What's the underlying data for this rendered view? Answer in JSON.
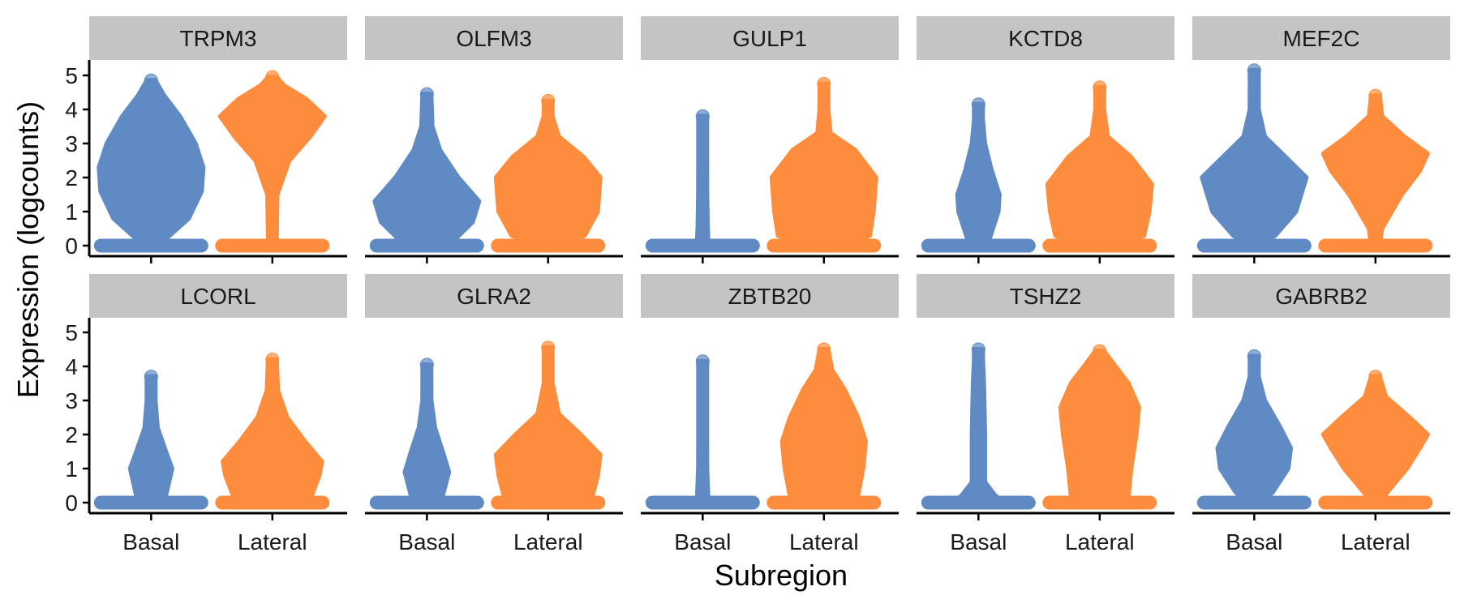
{
  "chart_data": {
    "type": "violin",
    "xlabel": "Subregion",
    "ylabel": "Expression (logcounts)",
    "categories": [
      "Basal",
      "Lateral"
    ],
    "y_ticks": [
      0,
      1,
      2,
      3,
      4,
      5
    ],
    "ylim": [
      -0.25,
      5.3
    ],
    "grid": false,
    "legend": "none",
    "colors": {
      "Basal": "#5f8ac4",
      "Lateral": "#fd8d3c",
      "strip": "#c4c4c4",
      "axis": "#000000"
    },
    "panels": [
      {
        "gene": "TRPM3",
        "Basal": {
          "max": 4.85,
          "zero": true,
          "width": [
            [
              0,
              0.06
            ],
            [
              0.2,
              0.28
            ],
            [
              0.8,
              0.72
            ],
            [
              1.6,
              0.97
            ],
            [
              2.3,
              1.0
            ],
            [
              3.0,
              0.85
            ],
            [
              3.8,
              0.55
            ],
            [
              4.4,
              0.25
            ],
            [
              4.85,
              0.05
            ]
          ]
        },
        "Lateral": {
          "max": 4.95,
          "zero": true,
          "width": [
            [
              0,
              0.05
            ],
            [
              0.3,
              0.06
            ],
            [
              1.5,
              0.09
            ],
            [
              2.5,
              0.32
            ],
            [
              3.2,
              0.72
            ],
            [
              3.8,
              1.0
            ],
            [
              4.3,
              0.65
            ],
            [
              4.7,
              0.22
            ],
            [
              4.95,
              0.05
            ]
          ]
        }
      },
      {
        "gene": "OLFM3",
        "Basal": {
          "max": 4.45,
          "zero": true,
          "width": [
            [
              0,
              0.12
            ],
            [
              0.25,
              0.58
            ],
            [
              0.7,
              0.88
            ],
            [
              1.3,
              1.0
            ],
            [
              2.0,
              0.6
            ],
            [
              2.8,
              0.25
            ],
            [
              3.5,
              0.1
            ],
            [
              4.45,
              0.05
            ]
          ]
        },
        "Lateral": {
          "max": 4.25,
          "zero": true,
          "width": [
            [
              0,
              0.1
            ],
            [
              0.3,
              0.7
            ],
            [
              1.0,
              0.95
            ],
            [
              2.0,
              1.0
            ],
            [
              2.6,
              0.68
            ],
            [
              3.2,
              0.2
            ],
            [
              3.8,
              0.07
            ],
            [
              4.25,
              0.05
            ]
          ]
        }
      },
      {
        "gene": "GULP1",
        "Basal": {
          "max": 3.8,
          "zero": true,
          "width": [
            [
              0,
              0.06
            ],
            [
              0.2,
              0.1
            ],
            [
              0.6,
              0.09
            ],
            [
              1.5,
              0.08
            ],
            [
              2.5,
              0.07
            ],
            [
              3.2,
              0.06
            ],
            [
              3.8,
              0.05
            ]
          ]
        },
        "Lateral": {
          "max": 4.75,
          "zero": true,
          "width": [
            [
              0,
              0.35
            ],
            [
              0.3,
              0.88
            ],
            [
              1.0,
              0.95
            ],
            [
              2.0,
              1.0
            ],
            [
              2.8,
              0.6
            ],
            [
              3.3,
              0.12
            ],
            [
              4.0,
              0.06
            ],
            [
              4.75,
              0.04
            ]
          ]
        }
      },
      {
        "gene": "KCTD8",
        "Basal": {
          "max": 4.15,
          "zero": true,
          "width": [
            [
              0,
              0.12
            ],
            [
              0.25,
              0.22
            ],
            [
              1.0,
              0.38
            ],
            [
              1.5,
              0.4
            ],
            [
              2.2,
              0.25
            ],
            [
              3.0,
              0.12
            ],
            [
              3.7,
              0.06
            ],
            [
              4.15,
              0.05
            ]
          ]
        },
        "Lateral": {
          "max": 4.65,
          "zero": true,
          "width": [
            [
              0,
              0.35
            ],
            [
              0.3,
              0.85
            ],
            [
              1.0,
              0.95
            ],
            [
              1.8,
              1.0
            ],
            [
              2.6,
              0.6
            ],
            [
              3.2,
              0.15
            ],
            [
              4.0,
              0.06
            ],
            [
              4.65,
              0.04
            ]
          ]
        }
      },
      {
        "gene": "MEF2C",
        "Basal": {
          "max": 5.15,
          "zero": true,
          "width": [
            [
              0,
              0.1
            ],
            [
              0.3,
              0.4
            ],
            [
              1.0,
              0.8
            ],
            [
              2.0,
              1.0
            ],
            [
              2.6,
              0.6
            ],
            [
              3.2,
              0.2
            ],
            [
              4.0,
              0.08
            ],
            [
              5.15,
              0.05
            ]
          ]
        },
        "Lateral": {
          "max": 4.4,
          "zero": true,
          "width": [
            [
              0,
              0.05
            ],
            [
              0.5,
              0.12
            ],
            [
              1.5,
              0.5
            ],
            [
              2.2,
              0.85
            ],
            [
              2.7,
              1.0
            ],
            [
              3.2,
              0.55
            ],
            [
              3.8,
              0.12
            ],
            [
              4.4,
              0.05
            ]
          ]
        }
      },
      {
        "gene": "LCORL",
        "Basal": {
          "max": 3.7,
          "zero": true,
          "width": [
            [
              0,
              0.2
            ],
            [
              0.2,
              0.28
            ],
            [
              1.0,
              0.4
            ],
            [
              1.5,
              0.28
            ],
            [
              2.2,
              0.12
            ],
            [
              3.0,
              0.07
            ],
            [
              3.7,
              0.05
            ]
          ]
        },
        "Lateral": {
          "max": 4.2,
          "zero": true,
          "width": [
            [
              0,
              0.3
            ],
            [
              0.2,
              0.75
            ],
            [
              0.8,
              0.9
            ],
            [
              1.2,
              0.95
            ],
            [
              1.8,
              0.62
            ],
            [
              2.5,
              0.28
            ],
            [
              3.3,
              0.1
            ],
            [
              4.2,
              0.05
            ]
          ]
        }
      },
      {
        "gene": "GLRA2",
        "Basal": {
          "max": 4.05,
          "zero": true,
          "width": [
            [
              0,
              0.2
            ],
            [
              0.2,
              0.3
            ],
            [
              0.9,
              0.42
            ],
            [
              1.5,
              0.3
            ],
            [
              2.2,
              0.15
            ],
            [
              3.0,
              0.08
            ],
            [
              4.05,
              0.05
            ]
          ]
        },
        "Lateral": {
          "max": 4.55,
          "zero": true,
          "width": [
            [
              0,
              0.3
            ],
            [
              0.2,
              0.85
            ],
            [
              0.8,
              0.95
            ],
            [
              1.4,
              1.0
            ],
            [
              2.0,
              0.62
            ],
            [
              2.6,
              0.2
            ],
            [
              3.5,
              0.07
            ],
            [
              4.55,
              0.05
            ]
          ]
        }
      },
      {
        "gene": "ZBTB20",
        "Basal": {
          "max": 4.15,
          "zero": true,
          "width": [
            [
              0,
              0.12
            ],
            [
              0.2,
              0.1
            ],
            [
              1.0,
              0.08
            ],
            [
              2.0,
              0.07
            ],
            [
              3.0,
              0.06
            ],
            [
              4.15,
              0.05
            ]
          ]
        },
        "Lateral": {
          "max": 4.5,
          "zero": true,
          "width": [
            [
              0,
              0.4
            ],
            [
              0.2,
              0.65
            ],
            [
              1.0,
              0.75
            ],
            [
              1.8,
              0.8
            ],
            [
              2.5,
              0.65
            ],
            [
              3.3,
              0.4
            ],
            [
              3.9,
              0.15
            ],
            [
              4.5,
              0.05
            ]
          ]
        }
      },
      {
        "gene": "TSHZ2",
        "Basal": {
          "max": 4.5,
          "zero": true,
          "width": [
            [
              0,
              0.5
            ],
            [
              0.2,
              0.32
            ],
            [
              0.6,
              0.12
            ],
            [
              2.0,
              0.12
            ],
            [
              3.5,
              0.1
            ],
            [
              4.2,
              0.08
            ],
            [
              4.5,
              0.05
            ]
          ]
        },
        "Lateral": {
          "max": 4.45,
          "zero": true,
          "width": [
            [
              0,
              0.3
            ],
            [
              0.2,
              0.55
            ],
            [
              1.0,
              0.6
            ],
            [
              2.0,
              0.7
            ],
            [
              2.8,
              0.75
            ],
            [
              3.5,
              0.55
            ],
            [
              4.0,
              0.3
            ],
            [
              4.45,
              0.05
            ]
          ]
        }
      },
      {
        "gene": "GABRB2",
        "Basal": {
          "max": 4.3,
          "zero": true,
          "width": [
            [
              0,
              0.12
            ],
            [
              0.3,
              0.35
            ],
            [
              1.0,
              0.65
            ],
            [
              1.6,
              0.7
            ],
            [
              2.2,
              0.5
            ],
            [
              3.0,
              0.2
            ],
            [
              3.7,
              0.08
            ],
            [
              4.3,
              0.05
            ]
          ]
        },
        "Lateral": {
          "max": 3.7,
          "zero": true,
          "width": [
            [
              0,
              0.08
            ],
            [
              0.3,
              0.22
            ],
            [
              1.0,
              0.6
            ],
            [
              1.6,
              0.85
            ],
            [
              2.0,
              1.0
            ],
            [
              2.5,
              0.65
            ],
            [
              3.1,
              0.2
            ],
            [
              3.7,
              0.05
            ]
          ]
        }
      }
    ]
  }
}
